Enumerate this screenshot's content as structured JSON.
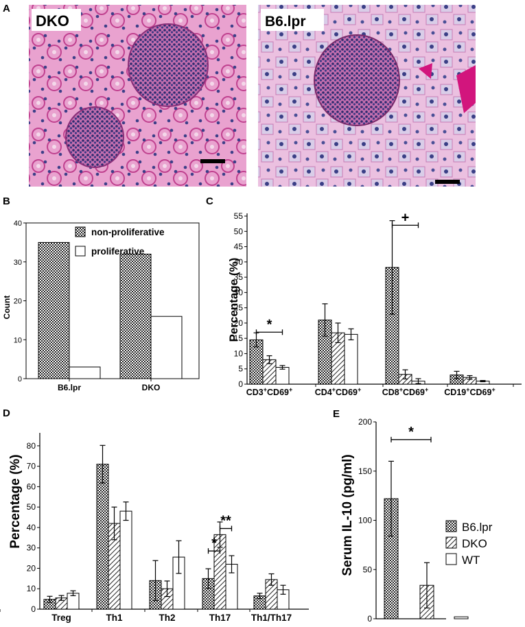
{
  "panel_a": {
    "label": "A",
    "images": [
      {
        "label": "DKO",
        "description_icon": "kidney-histology-micrograph"
      },
      {
        "label": "B6.lpr",
        "description_icon": "kidney-histology-micrograph"
      }
    ]
  },
  "chart_data": [
    {
      "panel": "B",
      "type": "bar",
      "categories": [
        "B6.lpr",
        "DKO"
      ],
      "series": [
        {
          "name": "non-proliferative",
          "values": [
            35,
            32
          ]
        },
        {
          "name": "proliferative",
          "values": [
            3,
            16
          ]
        }
      ],
      "ylabel": "Count",
      "ylim": [
        0,
        40
      ],
      "yticks": [
        0,
        10,
        20,
        30,
        40
      ],
      "legend": "top-right"
    },
    {
      "panel": "C",
      "type": "bar",
      "categories": [
        "CD3",
        "CD4",
        "CD8",
        "CD19"
      ],
      "category_suffix": "CD69",
      "series_styles": [
        "checker",
        "hatch",
        "white"
      ],
      "values": [
        [
          14.5,
          8,
          5.5
        ],
        [
          21,
          16.8,
          16.3
        ],
        [
          38.2,
          3.2,
          1
        ],
        [
          3,
          2.2,
          1
        ]
      ],
      "errors": [
        [
          2.3,
          1.3,
          0.6
        ],
        [
          5.3,
          3.2,
          1.8
        ],
        [
          15.3,
          1.5,
          0.8
        ],
        [
          1.2,
          0.6,
          0.2
        ]
      ],
      "ylabel": "Percentage (%)",
      "ylim": [
        0,
        55
      ],
      "yticks": [
        0,
        5,
        10,
        15,
        20,
        25,
        30,
        35,
        40,
        45,
        50,
        55
      ],
      "significance": [
        {
          "category": 0,
          "from": 0,
          "to": 2,
          "y": 17,
          "symbol": "*"
        },
        {
          "category": 2,
          "from": 0,
          "to": 2,
          "y": 52,
          "symbol": "+"
        }
      ]
    },
    {
      "panel": "D",
      "type": "bar",
      "categories": [
        "Treg",
        "Th1",
        "Th2",
        "Th17",
        "Th1/Th17"
      ],
      "series_styles": [
        "checker",
        "hatch",
        "white"
      ],
      "values": [
        [
          4.8,
          5.5,
          7.8
        ],
        [
          71,
          42,
          48
        ],
        [
          14,
          10,
          25.5
        ],
        [
          15,
          36.5,
          22
        ],
        [
          6.5,
          14.5,
          9.5
        ]
      ],
      "errors": [
        [
          1.5,
          1.2,
          1.2
        ],
        [
          9.2,
          8,
          4.5
        ],
        [
          9.8,
          3.8,
          8
        ],
        [
          4.8,
          6.2,
          4.2
        ],
        [
          1.3,
          2.8,
          2.2
        ]
      ],
      "ylabel": "Percentage (%)",
      "ylim": [
        0,
        85
      ],
      "yticks": [
        0,
        10,
        20,
        30,
        40,
        50,
        60,
        70,
        80
      ],
      "significance": [
        {
          "category": 3,
          "from": 0,
          "to": 1,
          "y": 28.5,
          "symbol": "*"
        },
        {
          "category": 3,
          "from": 1,
          "to": 2,
          "y": 39.5,
          "symbol": "**"
        }
      ]
    },
    {
      "panel": "E",
      "type": "bar",
      "categories": [
        "B6.lpr",
        "DKO",
        "WT"
      ],
      "series_styles": [
        "checker",
        "hatch",
        "white"
      ],
      "values": [
        122,
        34,
        2
      ],
      "errors": [
        38,
        23,
        0
      ],
      "ylabel": "Serum IL-10 (pg/ml)",
      "ylim": [
        0,
        200
      ],
      "yticks": [
        0,
        50,
        100,
        150,
        200
      ],
      "legend_entries": [
        "B6.lpr",
        "DKO",
        "WT"
      ],
      "legend": "right",
      "significance": [
        {
          "from": 0,
          "to": 1,
          "y": 182,
          "symbol": "*"
        }
      ]
    }
  ],
  "panel_labels": {
    "b": "B",
    "c": "C",
    "d": "D",
    "e": "E"
  },
  "cd_prefix_sup": "+"
}
